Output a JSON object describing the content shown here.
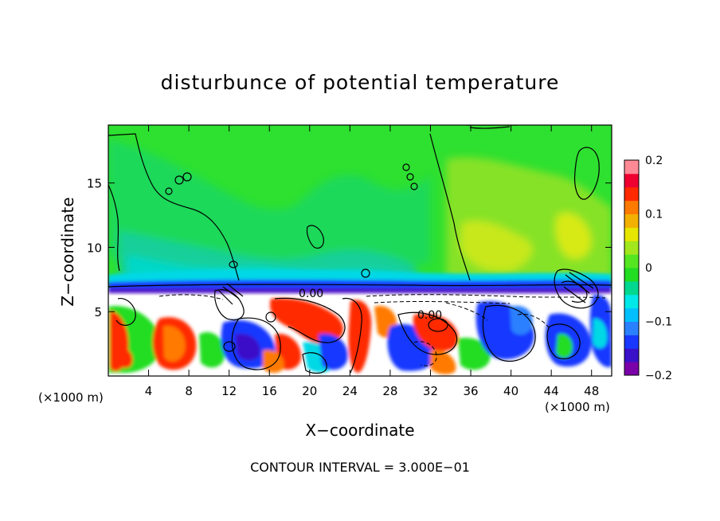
{
  "chart_data": {
    "type": "heatmap",
    "title": "disturbunce of potential temperature",
    "xlabel": "X−coordinate",
    "ylabel": "Z−coordinate",
    "x_unit": "(×1000 m)",
    "x_unit_right": "(×1000 m)",
    "xlim": [
      0,
      50
    ],
    "ylim": [
      0,
      19.5
    ],
    "xticks": [
      4,
      8,
      12,
      16,
      20,
      24,
      28,
      32,
      36,
      40,
      44,
      48
    ],
    "yticks": [
      5,
      10,
      15
    ],
    "colorbar": {
      "range": [
        -0.2,
        0.2
      ],
      "ticks": [
        {
          "value": 0.2,
          "label": "0.2"
        },
        {
          "value": 0.1,
          "label": "0.1"
        },
        {
          "value": 0,
          "label": "0"
        },
        {
          "value": -0.1,
          "label": "−0.1"
        },
        {
          "value": -0.2,
          "label": "−0.2"
        }
      ],
      "colors": [
        "#7a00a8",
        "#3a10c8",
        "#1838ff",
        "#2a80ff",
        "#00bfff",
        "#00e8e8",
        "#00d890",
        "#22dd22",
        "#55e622",
        "#a2e61e",
        "#e6e600",
        "#f2b000",
        "#ff7a00",
        "#ff2a00",
        "#ee0030",
        "#ff8a96"
      ]
    },
    "contour_labels": [
      "0.00",
      "0.00"
    ],
    "footer": "CONTOUR INTERVAL = 3.000E−01"
  }
}
